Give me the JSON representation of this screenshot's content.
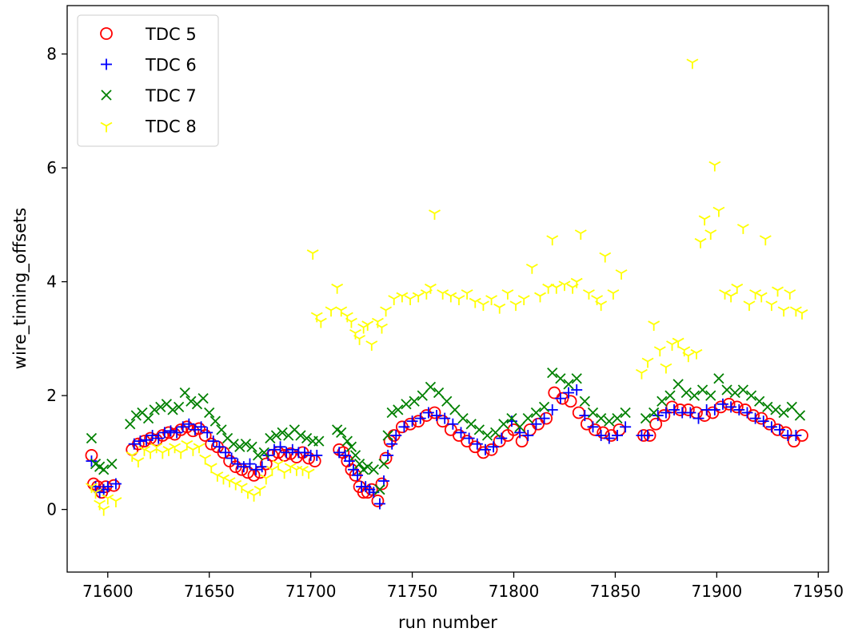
{
  "chart_data": {
    "type": "scatter",
    "xlabel": "run number",
    "ylabel": "wire_timing_offsets",
    "xlim": [
      71580,
      71955
    ],
    "ylim": [
      -1.1,
      8.85
    ],
    "xticks": [
      71600,
      71650,
      71700,
      71750,
      71800,
      71850,
      71900,
      71950
    ],
    "yticks": [
      0,
      2,
      4,
      6,
      8
    ],
    "legend_position": "upper-left",
    "series": [
      {
        "name": "TDC 5",
        "marker": "circle",
        "color": "#ff0000",
        "x": [
          71592,
          71593,
          71595,
          71597,
          71599,
          71603,
          71612,
          71615,
          71618,
          71621,
          71624,
          71627,
          71630,
          71633,
          71636,
          71639,
          71642,
          71645,
          71648,
          71651,
          71654,
          71657,
          71660,
          71663,
          71666,
          71669,
          71672,
          71675,
          71678,
          71681,
          71684,
          71687,
          71690,
          71693,
          71696,
          71699,
          71702,
          71714,
          71716,
          71718,
          71720,
          71722,
          71724,
          71726,
          71728,
          71730,
          71733,
          71735,
          71737,
          71739,
          71741,
          71745,
          71749,
          71753,
          71757,
          71761,
          71765,
          71769,
          71773,
          71777,
          71781,
          71785,
          71789,
          71793,
          71797,
          71800,
          71804,
          71808,
          71812,
          71816,
          71820,
          71824,
          71828,
          71832,
          71836,
          71840,
          71844,
          71848,
          71852,
          71864,
          71867,
          71870,
          71874,
          71878,
          71882,
          71886,
          71890,
          71894,
          71898,
          71902,
          71906,
          71910,
          71914,
          71918,
          71922,
          71926,
          71930,
          71934,
          71938,
          71942
        ],
        "y": [
          0.95,
          0.45,
          0.4,
          0.3,
          0.4,
          0.42,
          1.05,
          1.15,
          1.2,
          1.25,
          1.22,
          1.3,
          1.35,
          1.32,
          1.4,
          1.45,
          1.38,
          1.42,
          1.3,
          1.15,
          1.1,
          1.0,
          0.85,
          0.75,
          0.7,
          0.65,
          0.6,
          0.65,
          0.8,
          0.95,
          1.0,
          0.95,
          0.98,
          0.92,
          1.0,
          0.9,
          0.85,
          1.05,
          1.0,
          0.85,
          0.7,
          0.6,
          0.4,
          0.3,
          0.3,
          0.35,
          0.15,
          0.45,
          0.9,
          1.2,
          1.3,
          1.45,
          1.5,
          1.55,
          1.65,
          1.7,
          1.55,
          1.4,
          1.3,
          1.2,
          1.1,
          1.0,
          1.05,
          1.2,
          1.3,
          1.4,
          1.2,
          1.4,
          1.5,
          1.6,
          2.05,
          1.95,
          1.9,
          1.7,
          1.5,
          1.4,
          1.35,
          1.3,
          1.4,
          1.3,
          1.3,
          1.5,
          1.65,
          1.8,
          1.75,
          1.75,
          1.7,
          1.65,
          1.7,
          1.8,
          1.85,
          1.8,
          1.75,
          1.65,
          1.6,
          1.5,
          1.4,
          1.35,
          1.2,
          1.3
        ]
      },
      {
        "name": "TDC 6",
        "marker": "plus",
        "color": "#0000ff",
        "x": [
          71592,
          71594,
          71596,
          71598,
          71600,
          71604,
          71613,
          71616,
          71619,
          71622,
          71625,
          71628,
          71631,
          71634,
          71637,
          71640,
          71643,
          71646,
          71649,
          71652,
          71655,
          71658,
          71661,
          71664,
          71667,
          71670,
          71673,
          71676,
          71679,
          71682,
          71685,
          71688,
          71691,
          71694,
          71697,
          71700,
          71703,
          71714,
          71717,
          71719,
          71721,
          71723,
          71725,
          71727,
          71729,
          71731,
          71734,
          71736,
          71738,
          71740,
          71742,
          71746,
          71750,
          71754,
          71758,
          71762,
          71766,
          71770,
          71774,
          71778,
          71782,
          71786,
          71790,
          71794,
          71799,
          71803,
          71807,
          71811,
          71815,
          71819,
          71823,
          71827,
          71831,
          71835,
          71839,
          71843,
          71847,
          71851,
          71855,
          71863,
          71866,
          71871,
          71875,
          71879,
          71883,
          71887,
          71891,
          71895,
          71899,
          71903,
          71907,
          71911,
          71915,
          71919,
          71923,
          71927,
          71931,
          71935,
          71939
        ],
        "y": [
          0.85,
          0.4,
          0.3,
          0.35,
          0.4,
          0.45,
          1.15,
          1.2,
          1.22,
          1.3,
          1.25,
          1.35,
          1.38,
          1.35,
          1.45,
          1.5,
          1.4,
          1.45,
          1.35,
          1.2,
          1.1,
          1.0,
          0.9,
          0.8,
          0.75,
          0.8,
          0.7,
          0.75,
          0.95,
          1.05,
          1.1,
          1.0,
          1.05,
          1.0,
          1.0,
          0.95,
          0.95,
          1.0,
          0.95,
          0.85,
          0.7,
          0.6,
          0.4,
          0.4,
          0.35,
          0.3,
          0.1,
          0.5,
          0.95,
          1.15,
          1.3,
          1.45,
          1.55,
          1.6,
          1.7,
          1.65,
          1.6,
          1.5,
          1.35,
          1.25,
          1.15,
          1.05,
          1.1,
          1.25,
          1.55,
          1.35,
          1.3,
          1.5,
          1.6,
          1.75,
          1.95,
          2.05,
          2.1,
          1.65,
          1.45,
          1.3,
          1.25,
          1.3,
          1.45,
          1.3,
          1.3,
          1.65,
          1.7,
          1.75,
          1.7,
          1.7,
          1.6,
          1.75,
          1.75,
          1.85,
          1.8,
          1.75,
          1.7,
          1.6,
          1.55,
          1.45,
          1.4,
          1.3,
          1.3
        ]
      },
      {
        "name": "TDC 7",
        "marker": "x",
        "color": "#008000",
        "x": [
          71592,
          71594,
          71596,
          71598,
          71602,
          71611,
          71614,
          71617,
          71620,
          71623,
          71626,
          71629,
          71632,
          71635,
          71638,
          71641,
          71644,
          71647,
          71650,
          71653,
          71656,
          71659,
          71662,
          71665,
          71668,
          71671,
          71674,
          71677,
          71680,
          71683,
          71686,
          71689,
          71692,
          71695,
          71698,
          71701,
          71704,
          71713,
          71715,
          71718,
          71720,
          71722,
          71724,
          71726,
          71728,
          71731,
          71734,
          71736,
          71738,
          71740,
          71743,
          71747,
          71751,
          71755,
          71759,
          71763,
          71767,
          71771,
          71775,
          71779,
          71783,
          71787,
          71791,
          71795,
          71799,
          71803,
          71807,
          71811,
          71815,
          71819,
          71823,
          71827,
          71831,
          71835,
          71839,
          71843,
          71847,
          71851,
          71855,
          71865,
          71869,
          71873,
          71877,
          71881,
          71885,
          71889,
          71893,
          71897,
          71901,
          71905,
          71909,
          71913,
          71917,
          71921,
          71925,
          71929,
          71933,
          71937,
          71941
        ],
        "y": [
          1.25,
          0.8,
          0.75,
          0.7,
          0.8,
          1.5,
          1.65,
          1.7,
          1.6,
          1.75,
          1.8,
          1.85,
          1.75,
          1.8,
          2.05,
          1.9,
          1.85,
          1.95,
          1.7,
          1.55,
          1.4,
          1.25,
          1.15,
          1.1,
          1.15,
          1.1,
          0.95,
          1.0,
          1.25,
          1.3,
          1.35,
          1.3,
          1.4,
          1.3,
          1.25,
          1.2,
          1.2,
          1.4,
          1.35,
          1.2,
          1.1,
          0.95,
          0.8,
          0.7,
          0.75,
          0.7,
          0.35,
          0.8,
          1.3,
          1.7,
          1.75,
          1.85,
          1.9,
          2.0,
          2.15,
          2.05,
          1.9,
          1.75,
          1.6,
          1.5,
          1.4,
          1.3,
          1.35,
          1.5,
          1.6,
          1.45,
          1.6,
          1.7,
          1.8,
          2.4,
          2.3,
          2.2,
          2.3,
          1.9,
          1.7,
          1.6,
          1.55,
          1.6,
          1.7,
          1.6,
          1.7,
          1.9,
          2.0,
          2.2,
          2.05,
          2.0,
          2.1,
          2.0,
          2.3,
          2.1,
          2.05,
          2.1,
          2.0,
          1.9,
          1.8,
          1.75,
          1.7,
          1.8,
          1.65
        ]
      },
      {
        "name": "TDC 8",
        "marker": "tri_down",
        "color": "#ffff00",
        "x": [
          71592,
          71594,
          71596,
          71598,
          71600,
          71604,
          71612,
          71615,
          71618,
          71621,
          71624,
          71627,
          71630,
          71633,
          71636,
          71639,
          71642,
          71645,
          71648,
          71651,
          71654,
          71657,
          71660,
          71663,
          71666,
          71669,
          71672,
          71675,
          71678,
          71681,
          71684,
          71687,
          71690,
          71693,
          71696,
          71699,
          71701,
          71703,
          71705,
          71710,
          71713,
          71715,
          71718,
          71720,
          71722,
          71724,
          71726,
          71728,
          71730,
          71733,
          71735,
          71737,
          71741,
          71745,
          71749,
          71753,
          71757,
          71759,
          71761,
          71765,
          71769,
          71773,
          71777,
          71781,
          71785,
          71789,
          71793,
          71797,
          71801,
          71805,
          71809,
          71813,
          71817,
          71819,
          71821,
          71825,
          71829,
          71831,
          71833,
          71837,
          71841,
          71843,
          71845,
          71849,
          71853,
          71863,
          71866,
          71869,
          71872,
          71875,
          71878,
          71881,
          71884,
          71886,
          71888,
          71890,
          71892,
          71894,
          71897,
          71899,
          71901,
          71904,
          71907,
          71910,
          71913,
          71916,
          71919,
          71922,
          71924,
          71927,
          71930,
          71933,
          71936,
          71939,
          71942
        ],
        "y": [
          0.4,
          0.3,
          0.1,
          0.0,
          0.2,
          0.15,
          0.95,
          0.85,
          1.05,
          1.0,
          1.1,
          1.0,
          1.05,
          1.1,
          1.0,
          1.15,
          1.05,
          1.1,
          0.9,
          0.75,
          0.6,
          0.55,
          0.5,
          0.45,
          0.4,
          0.3,
          0.25,
          0.35,
          0.55,
          0.7,
          0.8,
          0.65,
          0.75,
          0.7,
          0.7,
          0.65,
          4.5,
          3.4,
          3.3,
          3.5,
          3.9,
          3.5,
          3.4,
          3.3,
          3.1,
          3.0,
          3.2,
          3.25,
          2.9,
          3.3,
          3.2,
          3.5,
          3.7,
          3.75,
          3.7,
          3.75,
          3.8,
          3.9,
          5.2,
          3.8,
          3.75,
          3.7,
          3.8,
          3.65,
          3.6,
          3.7,
          3.55,
          3.8,
          3.6,
          3.7,
          4.25,
          3.75,
          3.9,
          4.75,
          3.9,
          3.95,
          3.9,
          4.0,
          4.85,
          3.8,
          3.7,
          3.6,
          4.45,
          3.8,
          4.15,
          2.4,
          2.6,
          3.25,
          2.8,
          2.5,
          2.9,
          2.95,
          2.8,
          2.7,
          7.85,
          2.75,
          4.7,
          5.1,
          4.85,
          6.05,
          5.25,
          3.8,
          3.75,
          3.9,
          4.95,
          3.6,
          3.8,
          3.75,
          4.75,
          3.6,
          3.85,
          3.5,
          3.8,
          3.5,
          3.45
        ]
      }
    ]
  }
}
